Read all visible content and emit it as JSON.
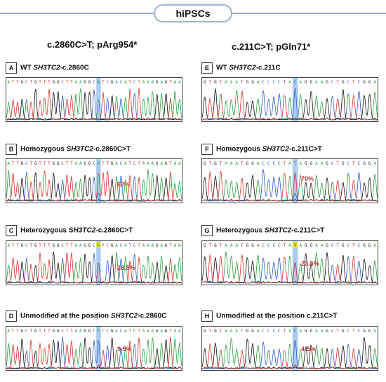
{
  "header": {
    "title": "hiPSCs"
  },
  "columns": [
    {
      "heading": "c.2860C>T; pArg954*"
    },
    {
      "heading": "c.211C>T; pGln71*"
    }
  ],
  "panels": [
    {
      "letter": "A",
      "pre": "WT ",
      "gene": "SH3TC2",
      "post": "-c.2860C",
      "percent": "",
      "sequence": "ATTGCTGTTTGGCTTAAGGCATCGACATCTAAAGAGTAA",
      "marker_index": 20,
      "variant": "wt"
    },
    {
      "letter": "B",
      "pre": "Homozygous ",
      "gene": "SH3TC2",
      "post": "-c.2860C>T",
      "percent": "62%",
      "sequence": "ATTGCTGTTTGGCTTAAGGCATTGACATCTAAAGAGTAA",
      "marker_index": 20,
      "variant": "hom"
    },
    {
      "letter": "C",
      "pre": "Heterozygous ",
      "gene": "SH3TC2",
      "post": "-c.2860C>T",
      "percent": "28.5%",
      "sequence": "ATTGCTGTTTGGCTTAAGGCAYCGACATCTAAAGAGTAA",
      "marker_index": 20,
      "variant": "het"
    },
    {
      "letter": "D",
      "pre": "Unmodified at the position ",
      "gene": "SH3TC2",
      "post": "-c.2860C",
      "percent": "9.5%",
      "sequence": "ATTGCTGTTTGGCTTAAGGCATCGACATCTAAAGAGTAA",
      "marker_index": 20,
      "variant": "unmod"
    },
    {
      "letter": "E",
      "pre": "WT ",
      "gene": "SH3TC2",
      "post": "-c.211C",
      "percent": "",
      "sequence": "GTGTAAATGGACCCCTACAGGAAGCTGCTCGGA",
      "marker_index": 17,
      "variant": "wt"
    },
    {
      "letter": "F",
      "pre": "Homozygous ",
      "gene": "SH3TC2",
      "post": "-c.211C>T",
      "percent": "70%",
      "sequence": "GTGTAAATGGACCCCTATAGGAAGCTGCTCGGA",
      "marker_index": 17,
      "variant": "hom"
    },
    {
      "letter": "G",
      "pre": "Heterozygous ",
      "gene": "SH3TC2",
      "post": "-c.211C>T",
      "percent": "23.5%",
      "sequence": "GTGTAAATGGACCCCTAYAGGAAGCTGCTCGGA",
      "marker_index": 17,
      "variant": "het"
    },
    {
      "letter": "H",
      "pre": "Unmodified at the position c.211C>T",
      "gene": "",
      "post": "",
      "percent": "4.5%",
      "sequence": "GTGTAAATGGACCCCTACAGGAAGCTGCTCGGA",
      "marker_index": 17,
      "variant": "unmod"
    }
  ],
  "colors": {
    "A": "#2ea043",
    "C": "#2f5bd4",
    "G": "#111111",
    "T": "#d9342b",
    "highlight": "#9cc2ec",
    "ambiguous": "#e3e032",
    "percent": "#c0302b",
    "border": "#9db3cf"
  }
}
